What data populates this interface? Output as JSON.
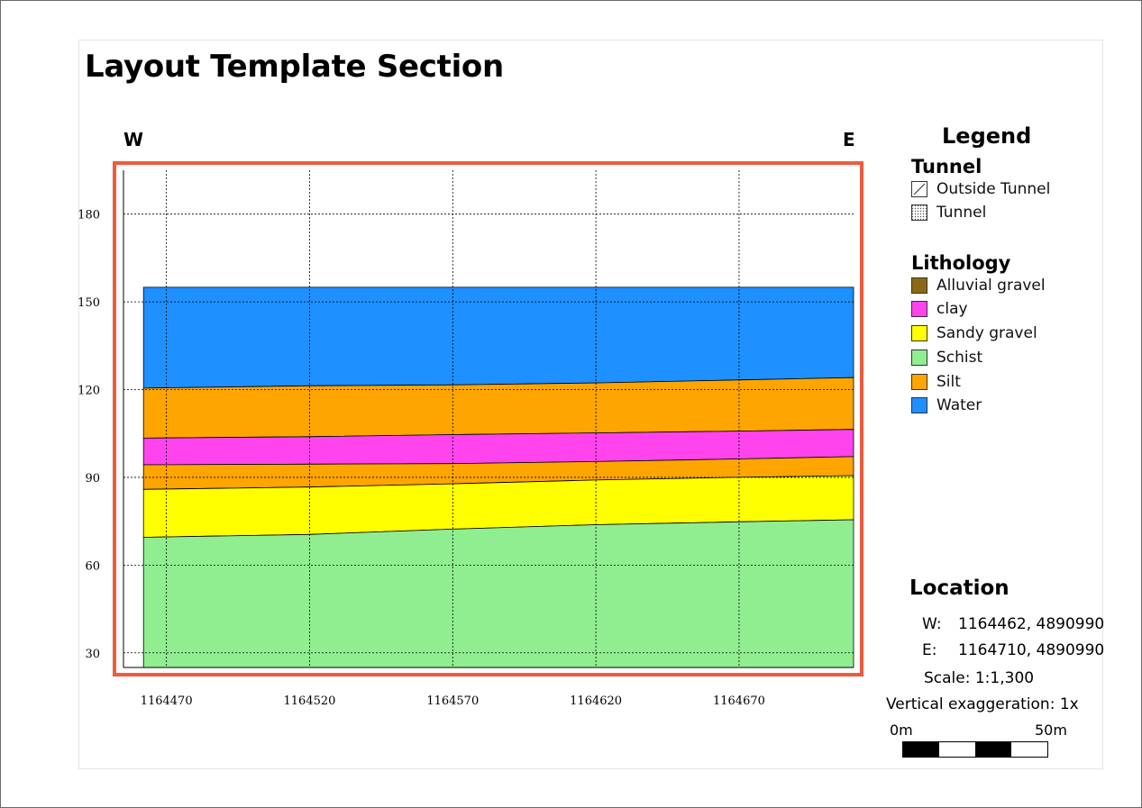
{
  "layout": {
    "title": "Layout Template Section",
    "west_label": "W",
    "east_label": "E"
  },
  "chart_data": {
    "type": "area",
    "title": "Layout Template Section",
    "xlim": [
      1164455,
      1164710
    ],
    "ylim": [
      25,
      195
    ],
    "x_ticks": [
      1164470,
      1164520,
      1164570,
      1164620,
      1164670
    ],
    "y_ticks": [
      30,
      60,
      90,
      120,
      150,
      180
    ],
    "grid": true,
    "x_stations": [
      1164462,
      1164520,
      1164570,
      1164620,
      1164670,
      1164710
    ],
    "baseline": 25,
    "layers": [
      {
        "name": "Water",
        "color": "#1e90ff",
        "top": [
          155,
          155,
          155,
          155,
          155,
          155
        ]
      },
      {
        "name": "Silt",
        "color": "#ffa500",
        "top": [
          120.5,
          121.3,
          121.6,
          122.3,
          123.3,
          124.1
        ]
      },
      {
        "name": "clay",
        "color": "#ff44ee",
        "top": [
          103.4,
          103.9,
          104.6,
          105.2,
          105.8,
          106.4
        ]
      },
      {
        "name": "Silt",
        "color": "#ffa500",
        "top": [
          94.3,
          94.5,
          94.7,
          95.4,
          96.3,
          97.1
        ]
      },
      {
        "name": "Sandy gravel",
        "color": "#ffff00",
        "top": [
          85.9,
          86.7,
          87.8,
          89.1,
          90.0,
          90.6
        ]
      },
      {
        "name": "Schist",
        "color": "#90ee90",
        "top": [
          69.5,
          70.5,
          72.3,
          73.8,
          74.8,
          75.5
        ]
      }
    ]
  },
  "legend": {
    "title": "Legend",
    "groups": [
      {
        "title": "Tunnel",
        "items": [
          {
            "label": "Outside Tunnel",
            "pattern": "diagonal"
          },
          {
            "label": "Tunnel",
            "pattern": "dots"
          }
        ]
      },
      {
        "title": "Lithology",
        "items": [
          {
            "label": "Alluvial gravel",
            "color": "#8b6914"
          },
          {
            "label": "clay",
            "color": "#ff44ee"
          },
          {
            "label": "Sandy gravel",
            "color": "#ffff00"
          },
          {
            "label": "Schist",
            "color": "#90ee90"
          },
          {
            "label": "Silt",
            "color": "#ffa500"
          },
          {
            "label": "Water",
            "color": "#1e90ff"
          }
        ]
      }
    ]
  },
  "location": {
    "title": "Location",
    "w_label": "W:",
    "w_coords": "1164462, 4890990",
    "e_label": "E:",
    "e_coords": "1164710, 4890990",
    "scale": "Scale: 1:1,300",
    "vertical_exaggeration": "Vertical exaggeration: 1x",
    "scalebar_start": "0m",
    "scalebar_end": "50m"
  },
  "colors": {
    "selection_outline": "#f05a3c"
  }
}
